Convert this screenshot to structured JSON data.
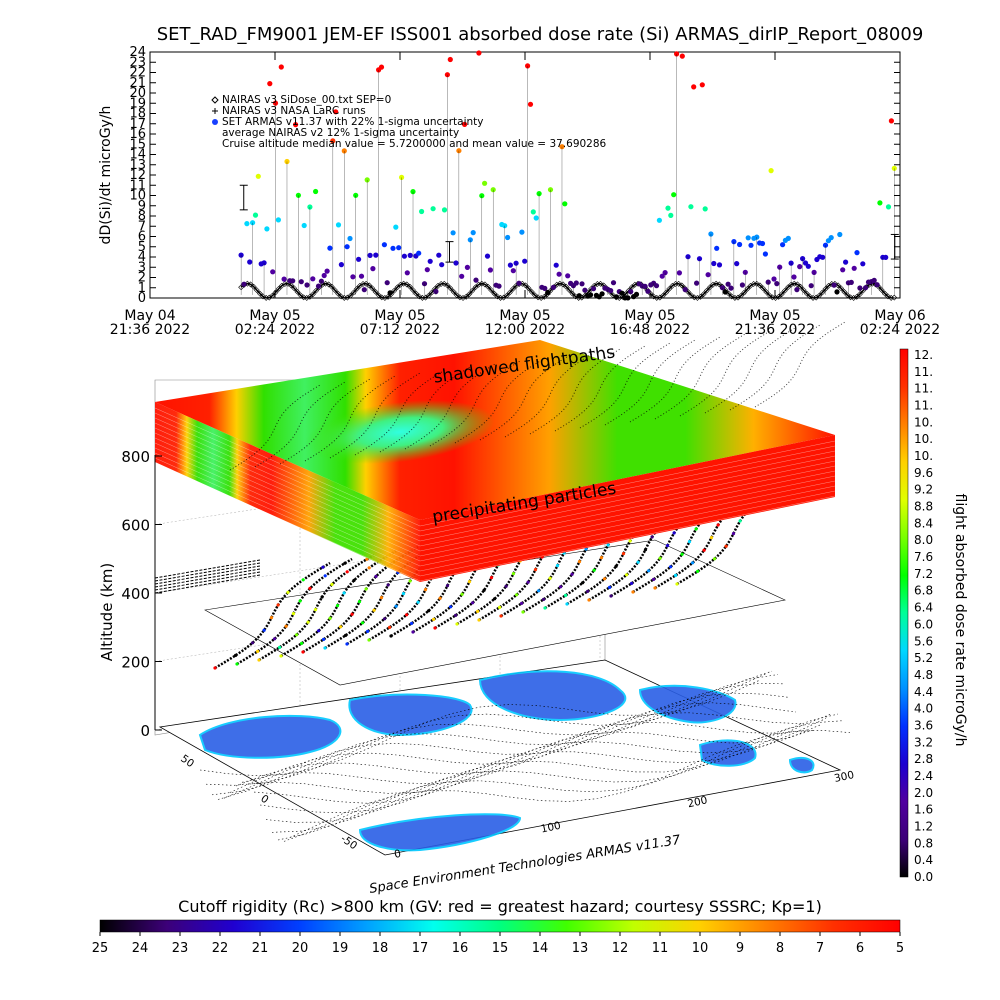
{
  "chart_data": [
    {
      "type": "scatter",
      "title": "SET_RAD_FM9001  JEM-EF ISS001 absorbed dose rate (Si) ARMAS_dirIP_Report_08009",
      "ylabel": "dD(Si)/dt microGy/h",
      "ylim": [
        0,
        24
      ],
      "y_ticks": [
        "0",
        "1",
        "2",
        "3",
        "4",
        "5",
        "6",
        "7",
        "8",
        "9",
        "10",
        "11",
        "12",
        "13",
        "14",
        "15",
        "16",
        "17",
        "18",
        "19",
        "20",
        "21",
        "22",
        "23",
        "24"
      ],
      "x_ticks": [
        {
          "date": "May 04",
          "time": "21:36  2022"
        },
        {
          "date": "May 05",
          "time": "02:24  2022"
        },
        {
          "date": "May 05",
          "time": "07:12  2022"
        },
        {
          "date": "May 05",
          "time": "12:00  2022"
        },
        {
          "date": "May 05",
          "time": "16:48  2022"
        },
        {
          "date": "May 05",
          "time": "21:36  2022"
        },
        {
          "date": "May 06",
          "time": "02:24  2022"
        }
      ],
      "legend": [
        "NAIRAS v3 SiDose_00.txt SEP=0",
        "NAIRAS v3 NASA LaRC runs",
        "SET ARMAS v11.37 with 22% 1-sigma uncertainty",
        "average NAIRAS v2 12% 1-sigma uncertainty",
        "Cruise altitude median value = 5.7200000 and mean value = 37.690286"
      ],
      "legend_placement": "top-left",
      "series": [
        {
          "name": "NAIRAS v3 SiDose_00.txt SEP=0",
          "marker": "diamond",
          "color": "#000000",
          "period_hours": 1.5,
          "min": 0,
          "max": 1.4
        },
        {
          "name": "SET ARMAS v11.37 with 22% 1-sigma uncertainty",
          "marker": "circle",
          "colorscale": "rainbow"
        }
      ],
      "error_bars": [
        {
          "x_hours": 3.6,
          "y": 9.8,
          "err": 1.2
        },
        {
          "x_hours": 11.5,
          "y": 4.5,
          "err": 1.0
        },
        {
          "x_hours": 28.6,
          "y": 5.0,
          "err": 1.2
        }
      ],
      "x_range_hours": [
        0,
        28.8
      ],
      "data_x_range_hours": [
        3.5,
        28.6
      ]
    },
    {
      "type": "3d-surface",
      "zlabel": "Altitude (km)",
      "z_ticks": [
        "0",
        "200",
        "400",
        "600",
        "800"
      ],
      "lon_ticks": [
        "0",
        "100",
        "200",
        "300"
      ],
      "lat_ticks": [
        "-50",
        "0",
        "50"
      ],
      "annotations": [
        "shadowed flightpaths",
        "precipitating particles"
      ],
      "credit": "Space Environment Technologies ARMAS v11.37"
    },
    {
      "type": "colorbar",
      "orientation": "vertical",
      "label": "flight absorbed dose rate microGy/h",
      "labels": [
        "12.",
        "11.",
        "11.",
        "11.",
        "10.",
        "10.",
        "10.",
        "9.6",
        "9.2",
        "8.8",
        "8.4",
        "8.0",
        "7.6",
        "7.2",
        "6.8",
        "6.4",
        "6.0",
        "5.6",
        "5.2",
        "4.8",
        "4.4",
        "4.0",
        "3.6",
        "3.2",
        "2.8",
        "2.4",
        "2.0",
        "1.6",
        "1.2",
        "0.8",
        "0.4",
        "0.0"
      ],
      "range": [
        0,
        12
      ]
    },
    {
      "type": "colorbar",
      "orientation": "horizontal",
      "label": "Cutoff rigidity (Rc) >800 km (GV: red = greatest hazard; courtesy SSSRC; Kp=1)",
      "labels": [
        "25",
        "24",
        "23",
        "22",
        "21",
        "20",
        "19",
        "18",
        "17",
        "16",
        "15",
        "14",
        "13",
        "12",
        "11",
        "10",
        "9",
        "8",
        "7",
        "6",
        "5"
      ],
      "range": [
        25,
        5
      ]
    }
  ],
  "colors": {
    "rainbow": [
      "#000000",
      "#3c0078",
      "#5000a0",
      "#1c00d0",
      "#0030ff",
      "#0090ff",
      "#00d8ff",
      "#00ff98",
      "#00ff00",
      "#78ff00",
      "#e0ff00",
      "#ffd000",
      "#ff8000",
      "#ff3000",
      "#ff0000"
    ],
    "land": "#2a5fe6",
    "land_edge": "#00c8ff",
    "rigidity_high": "#ff0000",
    "rigidity_low": "#00ffee"
  }
}
